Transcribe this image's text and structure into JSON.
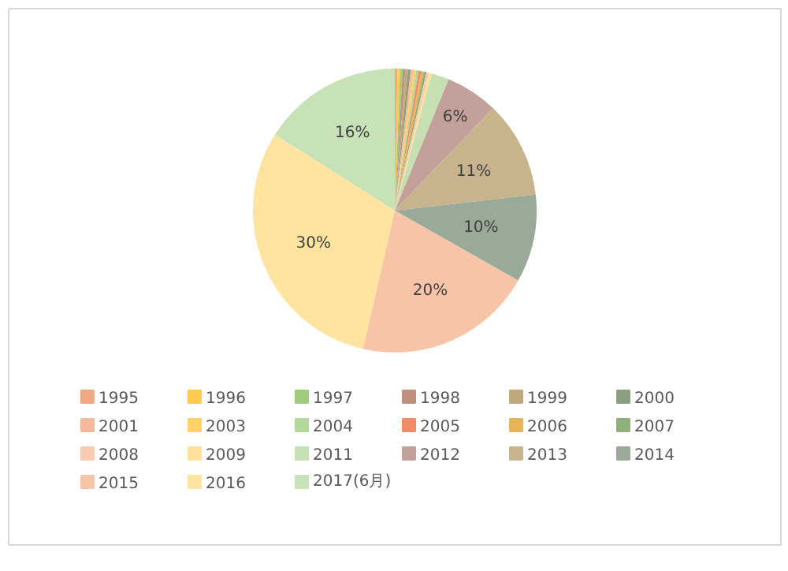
{
  "chart_data": {
    "type": "pie",
    "categories": [
      "1995",
      "1996",
      "1997",
      "1998",
      "1999",
      "2000",
      "2001",
      "2003",
      "2004",
      "2005",
      "2006",
      "2007",
      "2008",
      "2009",
      "2011",
      "2012",
      "2013",
      "2014",
      "2015",
      "2016",
      "2017(6月)"
    ],
    "values": [
      0.3,
      0.3,
      0.3,
      0.3,
      0.3,
      0.3,
      0.3,
      0.3,
      0.3,
      0.3,
      0.3,
      0.3,
      0.3,
      0.3,
      2.0,
      6,
      11,
      10,
      20.4,
      30.4,
      16
    ],
    "colors": [
      "#f0a882",
      "#ffc94d",
      "#9dcc7e",
      "#c0907e",
      "#bfa87a",
      "#8a9e80",
      "#f4b89a",
      "#ffd166",
      "#b3d89c",
      "#f08c6a",
      "#e8b45a",
      "#8fb07a",
      "#f8cbb0",
      "#ffe199",
      "#c6e0b4",
      "#c4a09a",
      "#c8b48c",
      "#9aaa98",
      "#f8c4a8",
      "#ffe4a0",
      "#c8e2b8"
    ],
    "value_labels": [
      null,
      null,
      null,
      null,
      null,
      null,
      null,
      null,
      null,
      null,
      null,
      null,
      null,
      null,
      null,
      "6%",
      "11%",
      "10%",
      "20%",
      "30%",
      "16%"
    ],
    "legend": "bottom"
  }
}
